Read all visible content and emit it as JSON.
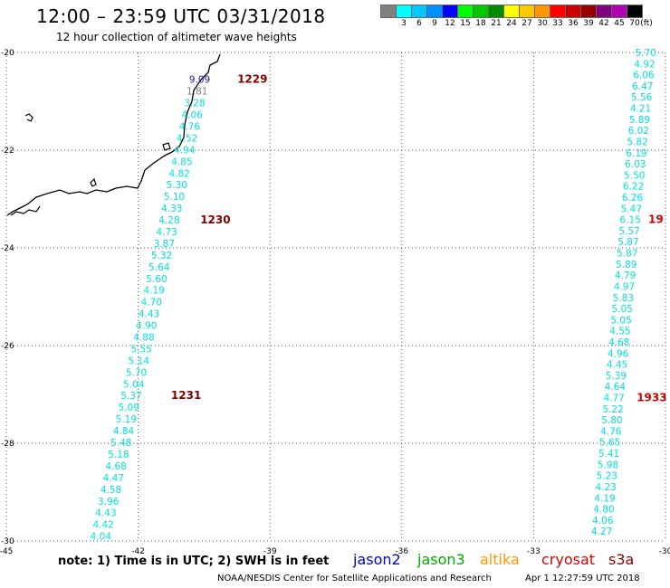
{
  "header": {
    "title": "12:00 – 23:59 UTC 03/31/2018",
    "subtitle": "12 hour collection of altimeter wave heights"
  },
  "legend": {
    "unit": "(ft)",
    "swatches": [
      {
        "label": "",
        "color": "#808080"
      },
      {
        "label": "3",
        "color": "#00ffff"
      },
      {
        "label": "6",
        "color": "#00c8ff"
      },
      {
        "label": "9",
        "color": "#0090ff"
      },
      {
        "label": "12",
        "color": "#0000ff"
      },
      {
        "label": "15",
        "color": "#00ff00"
      },
      {
        "label": "18",
        "color": "#00c800"
      },
      {
        "label": "21",
        "color": "#008c00"
      },
      {
        "label": "24",
        "color": "#ffff00"
      },
      {
        "label": "27",
        "color": "#ffc800"
      },
      {
        "label": "30",
        "color": "#ff9600"
      },
      {
        "label": "33",
        "color": "#ff0000"
      },
      {
        "label": "36",
        "color": "#c80000"
      },
      {
        "label": "39",
        "color": "#960000"
      },
      {
        "label": "42",
        "color": "#800080"
      },
      {
        "label": "45",
        "color": "#b400b4"
      },
      {
        "label": "70",
        "color": "#000000"
      }
    ]
  },
  "map": {
    "lon_range": [
      -45,
      -30
    ],
    "lat_range": [
      -30,
      -20
    ],
    "lon_ticks": [
      "-45",
      "-42",
      "-39",
      "-36",
      "-33",
      "-30"
    ],
    "lat_ticks": [
      "-20",
      "-22",
      "-24",
      "-26",
      "-28",
      "-30"
    ],
    "grid": true
  },
  "tracks": [
    {
      "id": "track-a",
      "color": "#00e0e0",
      "lat_top": -20.55,
      "lat_bottom": -29.9,
      "lon_top": -40.6,
      "lon_bottom": -42.85,
      "values": [
        "9.09",
        "1.81",
        "3.28",
        "4.06",
        "4.76",
        "4.52",
        "4.94",
        "4.85",
        "4.82",
        "5.30",
        "5.10",
        "4.33",
        "4.28",
        "4.73",
        "3.87",
        "5.32",
        "5.64",
        "5.60",
        "4.19",
        "4.70",
        "4.43",
        "4.90",
        "4.88",
        "5.55",
        "5.14",
        "5.70",
        "5.04",
        "5.37",
        "5.09",
        "5.19",
        "4.84",
        "5.48",
        "5.18",
        "4.68",
        "4.47",
        "4.58",
        "3.96",
        "4.43",
        "4.42",
        "4.04"
      ],
      "special_colors": {
        "0": "#1a1aaa",
        "1": "#808080"
      },
      "time_labels": [
        {
          "text": "1229",
          "index": 0,
          "offset_lon": 1.2
        },
        {
          "text": "1230",
          "index": 12,
          "offset_lon": 1.05
        },
        {
          "text": "1231",
          "index": 27,
          "offset_lon": 1.25
        }
      ],
      "time_label_color": "#800000"
    },
    {
      "id": "track-b",
      "color": "#00e0e0",
      "lat_top": -20.0,
      "lat_bottom": -29.8,
      "lon_top": -30.45,
      "lon_bottom": -31.45,
      "values": [
        "5.70",
        "4.92",
        "6.06",
        "6.47",
        "5.56",
        "4.21",
        "5.89",
        "6.02",
        "5.82",
        "6.19",
        "6.03",
        "5.50",
        "6.22",
        "6.26",
        "5.47",
        "6.15",
        "5.57",
        "5.87",
        "5.87",
        "5.89",
        "4.79",
        "4.97",
        "5.83",
        "5.05",
        "5.05",
        "4.55",
        "4.68",
        "4.96",
        "4.45",
        "5.39",
        "4.64",
        "4.77",
        "5.22",
        "5.80",
        "4.76",
        "5.65",
        "5.41",
        "5.98",
        "5.23",
        "4.23",
        "4.19",
        "4.80",
        "4.06",
        "4.27"
      ],
      "special_colors": {},
      "time_labels": [
        {
          "text": "19",
          "index": 15,
          "offset_lon": 0.58
        },
        {
          "text": "1933",
          "index": 31,
          "offset_lon": 0.86
        }
      ],
      "time_label_color": "#cc0000"
    }
  ],
  "footer": {
    "note": "note:  1) Time is in UTC;  2) SWH is in feet",
    "missions": [
      {
        "name": "jason2",
        "color": "#0000cc",
        "left": 390
      },
      {
        "name": "jason3",
        "color": "#00aa00",
        "left": 461
      },
      {
        "name": "altika",
        "color": "#ff9900",
        "left": 530
      },
      {
        "name": "cryosat",
        "color": "#dd0000",
        "left": 598
      },
      {
        "name": "s3a",
        "color": "#880000",
        "left": 672
      }
    ],
    "credit": "NOAA/NESDIS Center for Satellite Applications and Research",
    "timestamp": "Apr  1 12:27:59 UTC 2018"
  }
}
